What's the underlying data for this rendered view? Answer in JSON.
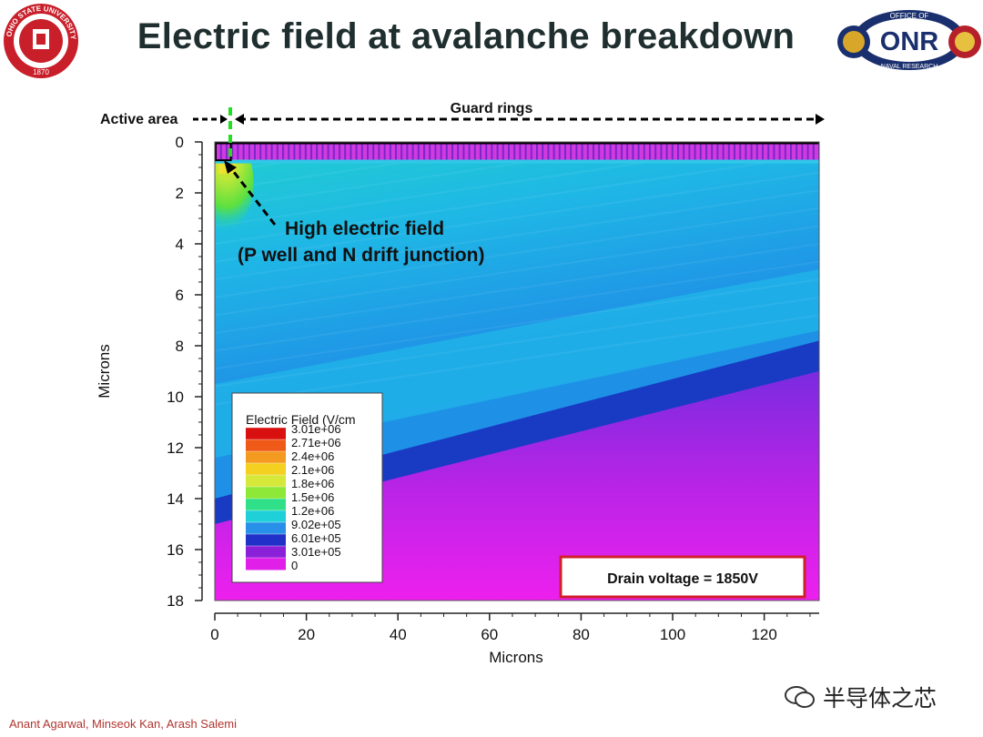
{
  "slide": {
    "title": "Electric field at avalanche breakdown",
    "footer": "Anant Agarwal, Minseok Kan, Arash Salemi",
    "watermark": "半导体之芯",
    "logo_left_icon": "ohio-state-seal-icon",
    "logo_left_text": "OHIO STATE UNIVERSITY",
    "logo_left_year": "1870",
    "logo_right_icon": "onr-logo-icon",
    "logo_right_text": "ONR",
    "logo_right_top": "OFFICE OF",
    "logo_right_bottom": "NAVAL RESEARCH"
  },
  "chart_data": {
    "type": "heatmap",
    "title": "",
    "xlabel": "Microns",
    "ylabel": "Microns",
    "xlim": [
      0,
      132
    ],
    "ylim": [
      18,
      0
    ],
    "x_ticks": [
      0,
      20,
      40,
      60,
      80,
      100,
      120
    ],
    "y_ticks": [
      0,
      2,
      4,
      6,
      8,
      10,
      12,
      14,
      16,
      18
    ],
    "quantity": "Electric Field (V/cm)",
    "legend": {
      "title": "Electric Field (V/cm",
      "labels": [
        "3.01e+06",
        "2.71e+06",
        "2.4e+06",
        "2.1e+06",
        "1.8e+06",
        "1.5e+06",
        "1.2e+06",
        "9.02e+05",
        "6.01e+05",
        "3.01e+05",
        "0"
      ],
      "colors": [
        "#d81010",
        "#f05a18",
        "#f59a20",
        "#f4d020",
        "#d6e83a",
        "#8ee838",
        "#30e088",
        "#20d0d8",
        "#2890e8",
        "#2030c8",
        "#8a20d8",
        "#e020e8"
      ]
    },
    "annotations": {
      "active_area": "Active area",
      "guard_rings": "Guard rings",
      "high_field_line1": "High electric field",
      "high_field_line2": "(P well and N drift junction)",
      "drain_voltage": "Drain voltage = 1850V"
    },
    "active_area_boundary_x": 3.8,
    "surface_layer_depth": 0.7,
    "contour_bands": [
      {
        "field": "8.0e+05",
        "color": "#1fb0e8",
        "y_left": 9.5,
        "y_right": 5.0
      },
      {
        "field": "7.0e+05",
        "color": "#1e8ee6",
        "y_left": 12.4,
        "y_right": 7.4
      },
      {
        "field": "5.5e+05",
        "color": "#1832c0",
        "y_left": 14.0,
        "y_right": 7.8
      },
      {
        "field": "4.0e+05",
        "color": "#6a2bd8",
        "y_left": 15.0,
        "y_right": 9.0
      }
    ]
  }
}
